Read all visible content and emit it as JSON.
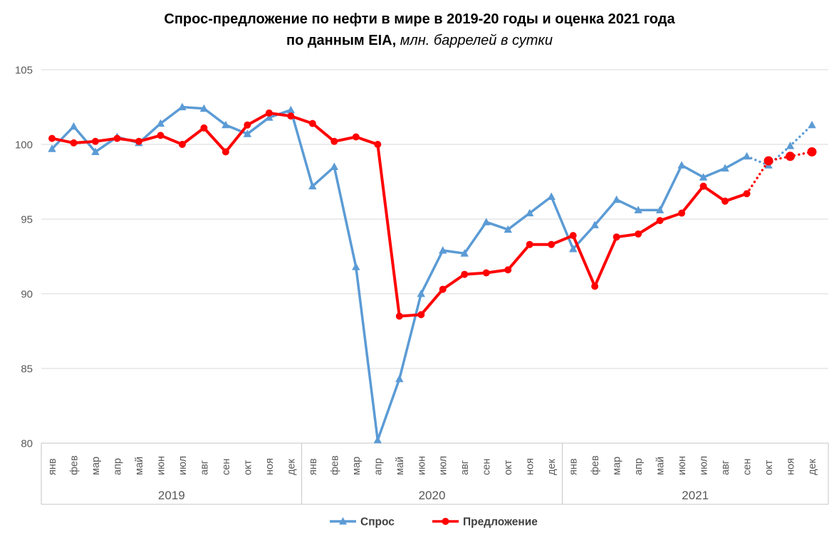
{
  "title": {
    "line1": "Спрос-предложение по нефти в мире в 2019-20 годы и оценка 2021 года",
    "line2_bold": "по данным EIA, ",
    "line2_italic": "млн. баррелей в сутки"
  },
  "legend": {
    "items": [
      {
        "label": "Спрос",
        "color": "#5B9BD5",
        "marker": "triangle"
      },
      {
        "label": "Предложение",
        "color": "#FF0000",
        "marker": "circle"
      }
    ]
  },
  "colors": {
    "demand": "#5B9BD5",
    "supply": "#FF0000",
    "gridline": "#D9D9D9",
    "axis_box": "#C6C6C6",
    "tick_label": "#595959",
    "legend_text": "#404040"
  },
  "chart_data": {
    "type": "line",
    "title": "Спрос-предложение по нефти в мире в 2019-20 годы и оценка 2021 года по данным EIA, млн. баррелей в сутки",
    "ylabel": "млн. баррелей в сутки",
    "ylim": [
      80,
      105
    ],
    "y_ticks": [
      80,
      85,
      90,
      95,
      100,
      105
    ],
    "grid": true,
    "legend_position": "bottom",
    "years": [
      "2019",
      "2020",
      "2021"
    ],
    "months": [
      "янв",
      "фев",
      "мар",
      "апр",
      "май",
      "июн",
      "июл",
      "авг",
      "сен",
      "окт",
      "ноя",
      "дек"
    ],
    "forecast_from_index": 32,
    "series": [
      {
        "name": "Спрос",
        "color": "#5B9BD5",
        "marker": "triangle",
        "values": [
          99.7,
          101.2,
          99.5,
          100.5,
          100.1,
          101.4,
          102.5,
          102.4,
          101.3,
          100.7,
          101.8,
          102.3,
          97.2,
          98.5,
          91.8,
          80.2,
          84.3,
          90.0,
          92.9,
          92.7,
          94.8,
          94.3,
          95.4,
          96.5,
          93.0,
          94.6,
          96.3,
          95.6,
          95.6,
          98.6,
          97.8,
          98.4,
          99.2,
          98.6,
          99.9,
          101.3
        ]
      },
      {
        "name": "Предложение",
        "color": "#FF0000",
        "marker": "circle",
        "values": [
          100.4,
          100.1,
          100.2,
          100.4,
          100.2,
          100.6,
          100.0,
          101.1,
          99.5,
          101.3,
          102.1,
          101.9,
          101.4,
          100.2,
          100.5,
          100.0,
          88.5,
          88.6,
          90.3,
          91.3,
          91.4,
          91.6,
          93.3,
          93.3,
          93.9,
          90.5,
          93.8,
          94.0,
          94.9,
          95.4,
          97.2,
          96.2,
          96.7,
          98.9,
          99.2,
          99.5
        ]
      }
    ]
  }
}
